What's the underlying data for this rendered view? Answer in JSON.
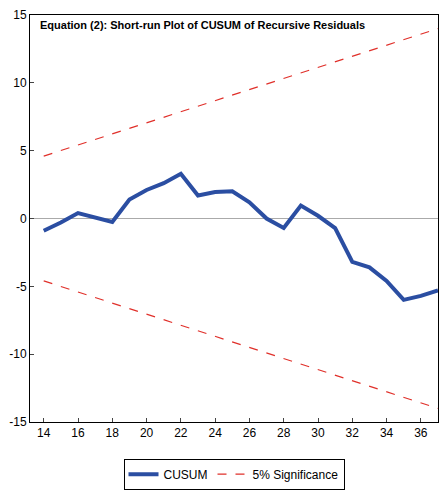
{
  "chart_data": {
    "type": "line",
    "title": "Equation (2): Short-run Plot of CUSUM of Recursive Residuals",
    "series": [
      {
        "name": "CUSUM",
        "color": "#2b4ea2",
        "line_style": "solid",
        "x": [
          14,
          15,
          16,
          17,
          18,
          19,
          20,
          21,
          22,
          23,
          24,
          25,
          26,
          27,
          28,
          29,
          30,
          31,
          32,
          33,
          34,
          35,
          36,
          37
        ],
        "values": [
          -0.9,
          -0.3,
          0.4,
          0.05,
          -0.25,
          1.4,
          2.1,
          2.6,
          3.3,
          1.7,
          1.95,
          2.0,
          1.2,
          0.0,
          -0.7,
          0.95,
          0.2,
          -0.7,
          -3.2,
          -3.6,
          -4.6,
          -6.0,
          -5.7,
          -5.3
        ]
      },
      {
        "name": "5% Significance",
        "color": "#e0302a",
        "line_style": "dash",
        "x": [
          14,
          37
        ],
        "values": [
          4.6,
          14.0
        ]
      },
      {
        "name": "5% Significance",
        "color": "#e0302a",
        "line_style": "dash",
        "x": [
          14,
          37
        ],
        "values": [
          -4.6,
          -14.0
        ]
      }
    ],
    "xlim": [
      13.2,
      37
    ],
    "xticks": [
      14,
      16,
      18,
      20,
      22,
      24,
      26,
      28,
      30,
      32,
      34,
      36
    ],
    "ylim": [
      -15,
      15
    ],
    "yticks": [
      -15,
      -10,
      -5,
      0,
      5,
      10,
      15
    ],
    "grid": false,
    "legend": "bottom"
  }
}
